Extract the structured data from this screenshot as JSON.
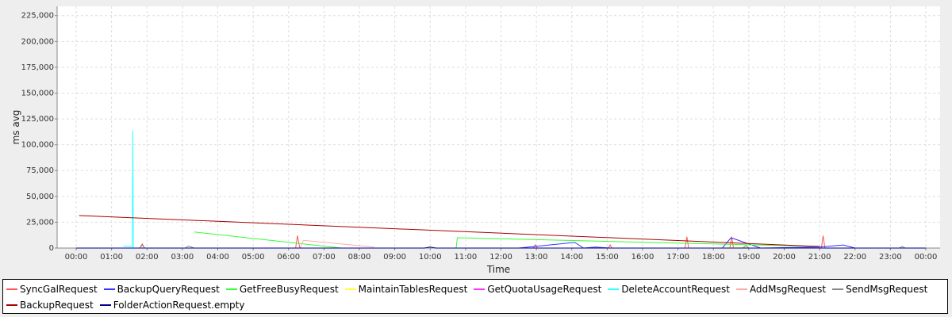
{
  "chart_data": {
    "type": "line",
    "title": "",
    "xlabel": "Time",
    "ylabel": "ms avg",
    "xlim": [
      "00:00",
      "24:00"
    ],
    "ylim": [
      0,
      234000
    ],
    "x_ticks": [
      "00:00",
      "01:00",
      "02:00",
      "03:00",
      "04:00",
      "05:00",
      "06:00",
      "07:00",
      "08:00",
      "09:00",
      "10:00",
      "11:00",
      "12:00",
      "13:00",
      "14:00",
      "15:00",
      "16:00",
      "17:00",
      "18:00",
      "19:00",
      "20:00",
      "21:00",
      "22:00",
      "23:00",
      "00:00"
    ],
    "y_ticks": [
      0,
      25000,
      50000,
      75000,
      100000,
      125000,
      150000,
      175000,
      200000,
      225000
    ],
    "y_tick_labels": [
      "0",
      "25,000",
      "50,000",
      "75,000",
      "100,000",
      "125,000",
      "150,000",
      "175,000",
      "200,000",
      "225,000"
    ],
    "grid": true,
    "legend_position": "bottom",
    "series": [
      {
        "name": "SyncGalRequest",
        "color": "#ff5555",
        "points": [
          [
            "00:00",
            0
          ],
          [
            "01:48",
            0
          ],
          [
            "01:52",
            4000
          ],
          [
            "01:56",
            0
          ],
          [
            "06:12",
            0
          ],
          [
            "06:15",
            12000
          ],
          [
            "06:19",
            0
          ],
          [
            "12:55",
            0
          ],
          [
            "12:58",
            3000
          ],
          [
            "13:02",
            0
          ],
          [
            "15:02",
            0
          ],
          [
            "15:05",
            3000
          ],
          [
            "15:08",
            0
          ],
          [
            "17:12",
            0
          ],
          [
            "17:15",
            11000
          ],
          [
            "17:18",
            0
          ],
          [
            "18:28",
            0
          ],
          [
            "18:31",
            11000
          ],
          [
            "18:34",
            0
          ],
          [
            "21:03",
            0
          ],
          [
            "21:06",
            12000
          ],
          [
            "21:09",
            0
          ],
          [
            "24:00",
            0
          ]
        ]
      },
      {
        "name": "BackupQueryRequest",
        "color": "#3333ff",
        "points": [
          [
            "12:30",
            0
          ],
          [
            "14:05",
            5500
          ],
          [
            "14:20",
            0
          ],
          [
            "14:40",
            1000
          ],
          [
            "15:05",
            0
          ],
          [
            "18:15",
            0
          ],
          [
            "18:30",
            10000
          ],
          [
            "19:20",
            0
          ],
          [
            "21:00",
            1000
          ],
          [
            "21:40",
            3000
          ],
          [
            "22:00",
            0
          ]
        ]
      },
      {
        "name": "GetFreeBusyRequest",
        "color": "#33ff33",
        "points": [
          [
            "03:20",
            15500
          ],
          [
            "07:30",
            0
          ],
          [
            "10:44",
            0
          ],
          [
            "10:46",
            10000
          ],
          [
            "21:00",
            1500
          ]
        ]
      },
      {
        "name": "MaintainTablesRequest",
        "color": "#ffff33",
        "points": [
          [
            "18:00",
            0
          ],
          [
            "19:00",
            500
          ]
        ]
      },
      {
        "name": "GetQuotaUsageRequest",
        "color": "#ff33ff",
        "points": [
          [
            "00:00",
            0
          ],
          [
            "24:00",
            0
          ]
        ]
      },
      {
        "name": "DeleteAccountRequest",
        "color": "#33ffff",
        "points": [
          [
            "01:20",
            2000
          ],
          [
            "01:35",
            1500
          ],
          [
            "01:36",
            114000
          ],
          [
            "01:37",
            0
          ]
        ]
      },
      {
        "name": "AddMsgRequest",
        "color": "#ffaaaa",
        "points": [
          [
            "06:20",
            0
          ],
          [
            "06:25",
            7500
          ],
          [
            "08:25",
            1000
          ]
        ]
      },
      {
        "name": "SendMsgRequest",
        "color": "#888888",
        "points": [
          [
            "01:48",
            0
          ],
          [
            "01:52",
            3000
          ],
          [
            "01:56",
            0
          ],
          [
            "03:05",
            0
          ],
          [
            "03:10",
            2000
          ],
          [
            "03:20",
            0
          ],
          [
            "18:50",
            0
          ],
          [
            "18:55",
            2500
          ],
          [
            "19:00",
            0
          ],
          [
            "23:15",
            0
          ],
          [
            "23:20",
            1500
          ],
          [
            "23:25",
            0
          ]
        ]
      },
      {
        "name": "BackupRequest",
        "color": "#aa0000",
        "points": [
          [
            "00:05",
            31500
          ],
          [
            "21:00",
            1500
          ]
        ]
      },
      {
        "name": "FolderActionRequest.empty",
        "color": "#000088",
        "points": [
          [
            "00:00",
            0
          ],
          [
            "09:50",
            0
          ],
          [
            "10:00",
            1000
          ],
          [
            "10:10",
            0
          ],
          [
            "24:00",
            0
          ]
        ]
      }
    ]
  }
}
